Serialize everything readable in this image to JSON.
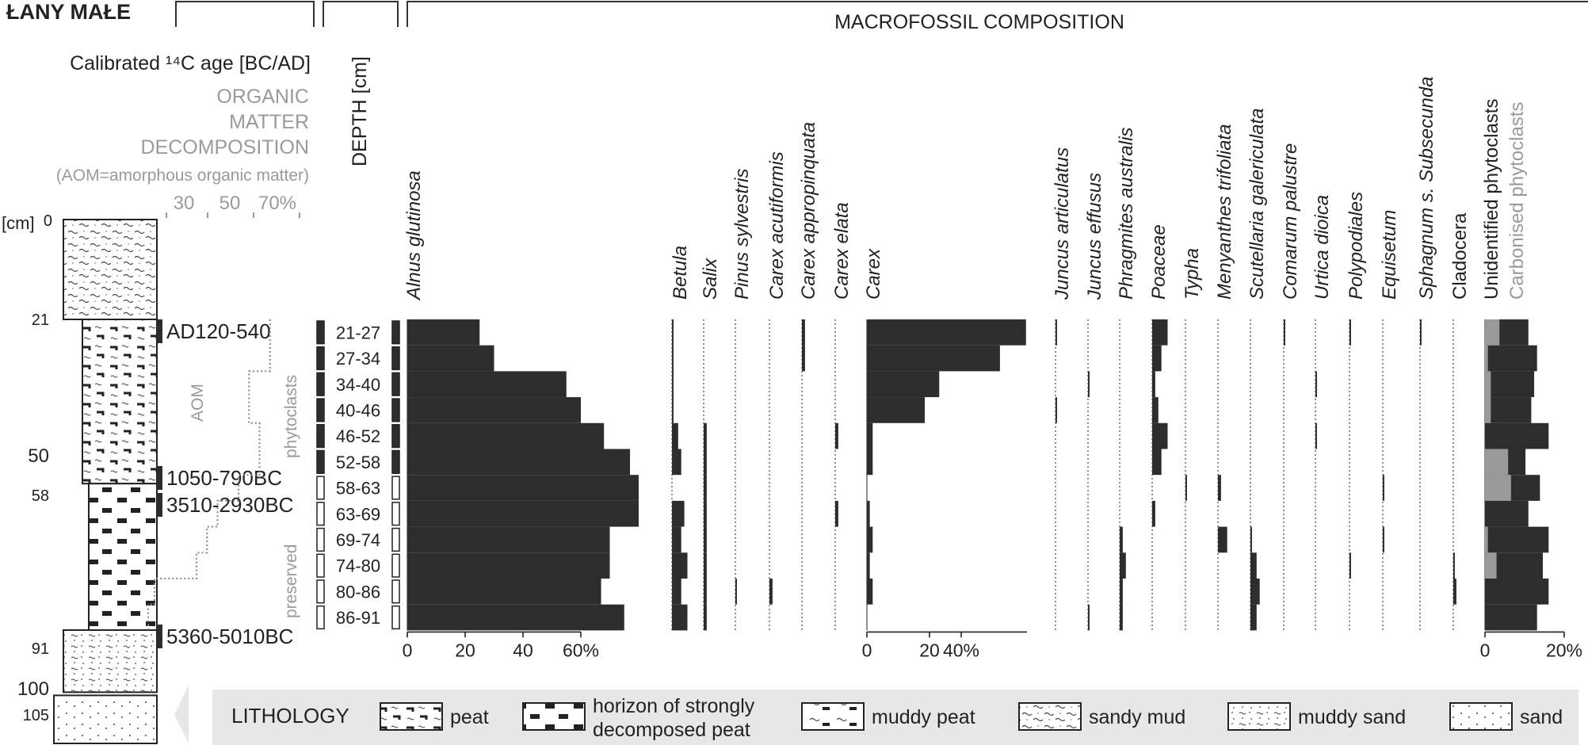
{
  "site_title": "ŁANY MAŁE",
  "header": {
    "age_axis": "Calibrated ¹⁴C age [BC/AD]",
    "decomp_line1": "ORGANIC",
    "decomp_line2": "MATTER",
    "decomp_line3": "DECOMPOSITION",
    "decomp_note": "(AOM=amorphous organic matter)",
    "depth_label": "DEPTH [cm]",
    "macrofossil_title": "MACROFOSSIL COMPOSITION",
    "cm_label": "[cm]"
  },
  "colors": {
    "bar": "#2d2d2d",
    "carbonised": "#9a9a9a",
    "text": "#222222",
    "legend_bg": "#e7e7e7"
  },
  "lithology": {
    "depth_ticks": [
      "0",
      "21",
      "50",
      "58",
      "91",
      "100",
      "105"
    ],
    "units": [
      {
        "from": 0,
        "to": 21,
        "type": "sandy mud"
      },
      {
        "from": 21,
        "to": 58,
        "type": "peat"
      },
      {
        "from": 58,
        "to": 91,
        "type": "horizon of strongly decomposed peat"
      },
      {
        "from": 91,
        "to": 105,
        "type": "muddy sand"
      },
      {
        "from": 105,
        "to": 110,
        "type": "sand"
      }
    ]
  },
  "dates": [
    {
      "depth": 24,
      "label": "AD120-540"
    },
    {
      "depth": 56,
      "label": "1050-790BC"
    },
    {
      "depth": 61,
      "label": "3510-2930BC"
    },
    {
      "depth": 88.5,
      "label": "5360-5010BC"
    }
  ],
  "decomposition": {
    "axis_ticks": [
      "30",
      "50",
      "70%"
    ],
    "aom_label": "AOM",
    "phytoclasts_label": "phytoclasts",
    "preserved_label": "preserved",
    "values": [
      70,
      70,
      60,
      60,
      65,
      65,
      55,
      45,
      40,
      35,
      15,
      12
    ]
  },
  "chart_data": {
    "type": "bar",
    "orientation": "horizontal",
    "title": "MACROFOSSIL COMPOSITION",
    "categories": [
      "21-27",
      "27-34",
      "34-40",
      "40-46",
      "46-52",
      "52-58",
      "58-63",
      "63-69",
      "69-74",
      "74-80",
      "80-86",
      "86-91"
    ],
    "series": [
      {
        "name": "Alnus glutinosa",
        "italic": true,
        "values": [
          25,
          30,
          55,
          60,
          68,
          77,
          80,
          80,
          70,
          70,
          67,
          75
        ],
        "axis_ticks": [
          "0",
          "20",
          "40",
          "60%"
        ]
      },
      {
        "name": "Betula",
        "italic": true,
        "values": [
          0.5,
          0.5,
          0.5,
          0.5,
          2,
          3,
          0,
          4,
          3,
          5,
          3,
          5
        ]
      },
      {
        "name": "Salix",
        "italic": true,
        "values": [
          0,
          0,
          0,
          0,
          1,
          1,
          1,
          1,
          1,
          1,
          1,
          1
        ]
      },
      {
        "name": "Pinus sylvestris",
        "italic": true,
        "values": [
          0,
          0,
          0,
          0,
          0,
          0,
          0,
          0,
          0,
          0,
          0.5,
          0
        ]
      },
      {
        "name": "Carex acutiformis",
        "italic": true,
        "values": [
          0,
          0,
          0,
          0,
          0,
          0,
          0,
          0,
          0,
          0,
          1,
          0
        ]
      },
      {
        "name": "Carex appropinquata",
        "italic": true,
        "values": [
          1,
          1,
          0,
          0,
          0,
          0,
          0,
          0,
          0,
          0,
          0,
          0
        ]
      },
      {
        "name": "Carex elata",
        "italic": true,
        "values": [
          0,
          0,
          0,
          0,
          1,
          0,
          0,
          1,
          0,
          0,
          0,
          0
        ]
      },
      {
        "name": "Carex",
        "italic": true,
        "values": [
          55,
          46,
          25,
          20,
          2,
          2,
          0,
          1,
          2,
          1,
          2,
          0
        ],
        "axis_ticks": [
          "0",
          "20",
          "40%"
        ]
      },
      {
        "name": "Juncus articulatus",
        "italic": true,
        "values": [
          0.5,
          0,
          0,
          0.5,
          0,
          0,
          0,
          0,
          0,
          0,
          0,
          0
        ]
      },
      {
        "name": "Juncus effusus",
        "italic": true,
        "values": [
          0,
          0,
          0.5,
          0,
          0,
          0,
          0,
          0,
          0,
          0,
          0,
          0.5
        ]
      },
      {
        "name": "Phragmites australis",
        "italic": true,
        "values": [
          0,
          0,
          0,
          0,
          0,
          0,
          0,
          0,
          1,
          2,
          1,
          1
        ]
      },
      {
        "name": "Poaceae",
        "italic": true,
        "values": [
          5,
          3,
          1,
          2,
          5,
          3,
          0,
          1,
          0,
          0,
          0,
          0
        ]
      },
      {
        "name": "Typha",
        "italic": true,
        "values": [
          0,
          0,
          0,
          0,
          0,
          0,
          0.5,
          0,
          0,
          0,
          0,
          0
        ]
      },
      {
        "name": "Menyanthes trifoliata",
        "italic": true,
        "values": [
          0,
          0,
          0,
          0,
          0,
          0,
          1,
          0,
          3,
          0,
          0,
          0
        ]
      },
      {
        "name": "Scutellaria galericulata",
        "italic": true,
        "values": [
          0,
          0,
          0,
          0,
          0,
          0,
          0,
          0,
          0.5,
          2,
          3,
          2
        ]
      },
      {
        "name": "Comarum palustre",
        "italic": true,
        "values": [
          0.5,
          0,
          0,
          0,
          0,
          0,
          0,
          0,
          0,
          0,
          0,
          0
        ]
      },
      {
        "name": "Urtica dioica",
        "italic": true,
        "values": [
          0,
          0,
          0.5,
          0,
          0.5,
          0,
          0,
          0,
          0,
          0,
          0,
          0
        ]
      },
      {
        "name": "Polypodiales",
        "italic": true,
        "values": [
          0.5,
          0,
          0,
          0,
          0,
          0,
          0,
          0,
          0,
          0.5,
          0,
          0
        ]
      },
      {
        "name": "Equisetum",
        "italic": true,
        "values": [
          0,
          0,
          0,
          0,
          0,
          0,
          0.5,
          0,
          0.5,
          0,
          0,
          0
        ]
      },
      {
        "name": "Sphagnum s. Subsecunda",
        "italic": true,
        "values": [
          0.5,
          0,
          0,
          0,
          0,
          0,
          0,
          0,
          0,
          0,
          0,
          0
        ]
      },
      {
        "name": "Cladocera",
        "italic": false,
        "values": [
          0,
          0,
          0,
          0,
          0,
          0,
          0,
          0,
          0,
          0.5,
          1,
          0
        ]
      },
      {
        "name": "Unidentified phytoclasts",
        "italic": false,
        "values": [
          15,
          18,
          17,
          16,
          22,
          14,
          19,
          15,
          22,
          20,
          22,
          18
        ],
        "axis_ticks": [
          "0",
          "20%"
        ]
      },
      {
        "name": "Carbonised phytoclasts",
        "italic": false,
        "values": [
          5,
          1,
          2,
          2,
          0,
          8,
          9,
          0,
          1,
          4,
          0,
          0
        ]
      }
    ],
    "xlabel": "",
    "ylabel": "DEPTH [cm]"
  },
  "legend": {
    "title": "LITHOLOGY",
    "items": [
      {
        "key": "peat",
        "line1": "peat",
        "line2": ""
      },
      {
        "key": "horizon",
        "line1": "horizon of strongly",
        "line2": "decomposed peat"
      },
      {
        "key": "muddy-peat",
        "line1": "muddy peat",
        "line2": ""
      },
      {
        "key": "sandy-mud",
        "line1": "sandy mud",
        "line2": ""
      },
      {
        "key": "muddy-sand",
        "line1": "muddy sand",
        "line2": ""
      },
      {
        "key": "sand",
        "line1": "sand",
        "line2": ""
      }
    ]
  }
}
